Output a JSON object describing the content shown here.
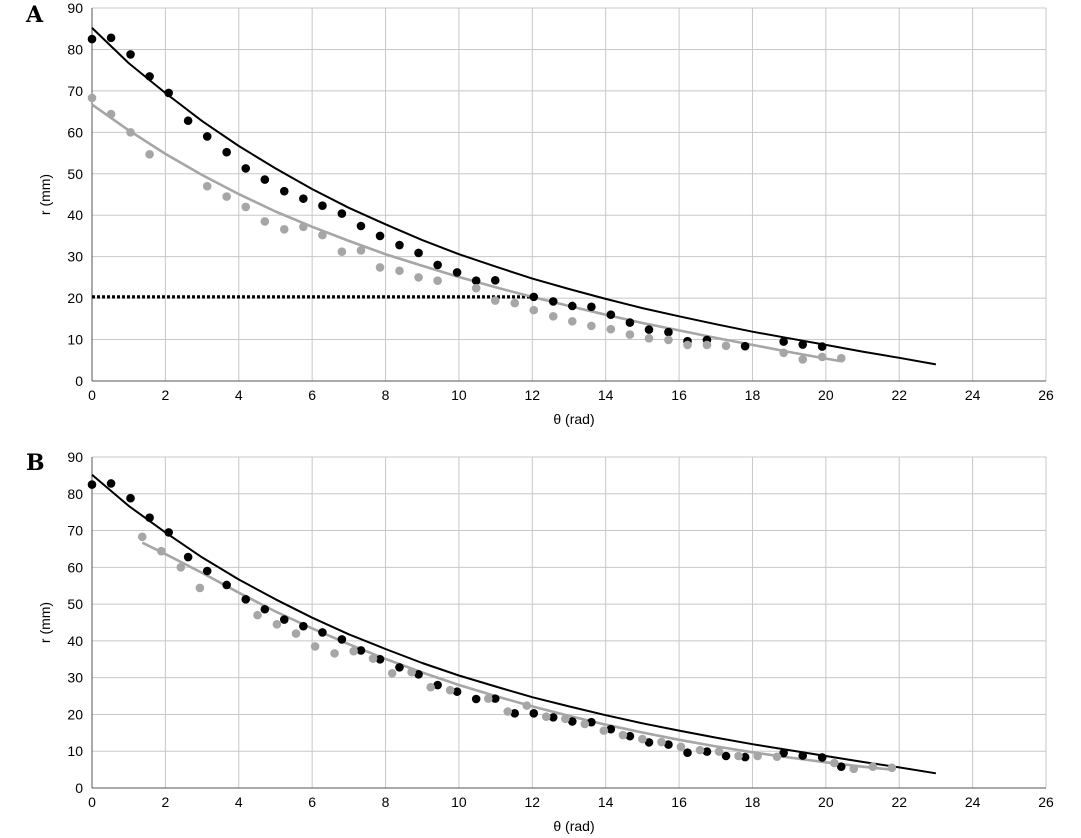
{
  "colors": {
    "black": "#000000",
    "gray": "#a6a6a6",
    "grid": "#c8c8c8"
  },
  "chart_data": [
    {
      "type": "scatter",
      "panel_label": "A",
      "xlabel": "θ (rad)",
      "ylabel": "r (mm)",
      "xlim": [
        0,
        26
      ],
      "ylim": [
        0,
        90
      ],
      "xticks": [
        "0",
        "2",
        "4",
        "6",
        "8",
        "10",
        "12",
        "14",
        "16",
        "18",
        "20",
        "22",
        "24",
        "26"
      ],
      "yticks": [
        "0",
        "10",
        "20",
        "30",
        "40",
        "50",
        "60",
        "70",
        "80",
        "90"
      ],
      "grid": true,
      "series": [
        {
          "color": "#000000",
          "kind": "points",
          "x": [
            0,
            0.52,
            1.05,
            1.57,
            2.09,
            2.62,
            3.14,
            3.67,
            4.19,
            4.71,
            5.24,
            5.76,
            6.28,
            6.81,
            7.33,
            7.85,
            8.38,
            8.9,
            9.42,
            9.95,
            10.47,
            10.99,
            12.04,
            12.57,
            13.09,
            13.61,
            14.14,
            14.66,
            15.18,
            15.71,
            16.23,
            16.76,
            17.8,
            18.85,
            19.37,
            19.9
          ],
          "y": [
            82.5,
            82.8,
            78.8,
            73.5,
            69.5,
            62.8,
            59,
            55.2,
            51.3,
            48.6,
            45.8,
            44,
            42.3,
            40.4,
            37.4,
            35,
            32.8,
            30.9,
            28,
            26.2,
            24.2,
            24.3,
            20.3,
            19.2,
            18.1,
            17.9,
            16,
            14.1,
            12.4,
            11.8,
            9.6,
            9.9,
            8.4,
            9.5,
            8.8,
            8.3
          ]
        },
        {
          "color": "#000000",
          "kind": "fit",
          "x": [
            0,
            1,
            2,
            3,
            4,
            5,
            6,
            7,
            8,
            9,
            10,
            11,
            12,
            13,
            14,
            15,
            16,
            17,
            18,
            19,
            20,
            21,
            22,
            23
          ],
          "y": [
            85.2,
            76.7,
            69.5,
            62.7,
            56.7,
            51.3,
            46.3,
            41.8,
            37.8,
            34,
            30.6,
            27.6,
            24.7,
            22.2,
            19.8,
            17.6,
            15.6,
            13.7,
            11.9,
            10.3,
            8.7,
            7.1,
            5.6,
            4
          ]
        },
        {
          "color": "#a6a6a6",
          "kind": "points",
          "x": [
            0,
            0.52,
            1.05,
            1.57,
            3.14,
            3.67,
            4.19,
            4.71,
            5.24,
            5.76,
            6.28,
            6.81,
            7.33,
            7.85,
            8.38,
            8.9,
            9.42,
            10.47,
            10.99,
            11.52,
            12.04,
            12.57,
            13.09,
            13.61,
            14.14,
            14.66,
            15.18,
            15.71,
            16.23,
            16.76,
            17.28,
            18.85,
            19.37,
            19.9,
            20.42
          ],
          "y": [
            68.3,
            64.4,
            60,
            54.7,
            47,
            44.5,
            42,
            38.5,
            36.6,
            37.2,
            35.2,
            31.2,
            31.5,
            27.4,
            26.6,
            25,
            24.2,
            22.4,
            19.4,
            18.8,
            17.1,
            15.6,
            14.4,
            13.3,
            12.5,
            11.2,
            10.3,
            9.9,
            8.7,
            8.7,
            8.5,
            6.8,
            5.2,
            5.8,
            5.5
          ]
        },
        {
          "color": "#a6a6a6",
          "kind": "fit",
          "x": [
            0,
            1,
            2,
            3,
            4,
            5,
            6,
            7,
            8,
            9,
            10,
            11,
            12,
            13,
            14,
            15,
            16,
            17,
            18,
            19,
            20,
            20.4
          ],
          "y": [
            66.7,
            60.5,
            54.8,
            49.7,
            45.1,
            40.9,
            37.2,
            33.8,
            30.6,
            27.8,
            25.1,
            22.6,
            20.3,
            18.1,
            16,
            14,
            12.2,
            10.4,
            8.7,
            7,
            5.4,
            4.8
          ]
        },
        {
          "color": "#000000",
          "kind": "dotted",
          "x": [
            0,
            12
          ],
          "y": [
            20.3,
            20.3
          ]
        }
      ]
    },
    {
      "type": "scatter",
      "panel_label": "B",
      "xlabel": "θ (rad)",
      "ylabel": "r (mm)",
      "xlim": [
        0,
        26
      ],
      "ylim": [
        0,
        90
      ],
      "xticks": [
        "0",
        "2",
        "4",
        "6",
        "8",
        "10",
        "12",
        "14",
        "16",
        "18",
        "20",
        "22",
        "24",
        "26"
      ],
      "yticks": [
        "0",
        "10",
        "20",
        "30",
        "40",
        "50",
        "60",
        "70",
        "80",
        "90"
      ],
      "grid": true,
      "series": [
        {
          "color": "#000000",
          "kind": "points",
          "x": [
            0,
            0.52,
            1.05,
            1.57,
            2.09,
            2.62,
            3.14,
            3.67,
            4.19,
            4.71,
            5.24,
            5.76,
            6.28,
            6.81,
            7.33,
            7.85,
            8.38,
            8.9,
            9.42,
            9.95,
            10.47,
            10.99,
            11.52,
            12.04,
            12.57,
            13.09,
            13.61,
            14.14,
            14.66,
            15.18,
            15.71,
            16.23,
            16.76,
            17.28,
            17.8,
            18.85,
            19.37,
            19.9,
            20.42
          ],
          "y": [
            82.5,
            82.8,
            78.8,
            73.5,
            69.5,
            62.8,
            59,
            55.2,
            51.3,
            48.6,
            45.8,
            44,
            42.3,
            40.4,
            37.4,
            35,
            32.8,
            30.9,
            28,
            26.2,
            24.2,
            24.3,
            20.3,
            20.3,
            19.2,
            18.1,
            17.9,
            16,
            14.1,
            12.4,
            11.8,
            9.6,
            9.9,
            8.7,
            8.4,
            9.5,
            8.8,
            8.3,
            5.8
          ]
        },
        {
          "color": "#000000",
          "kind": "fit",
          "x": [
            0,
            1,
            2,
            3,
            4,
            5,
            6,
            7,
            8,
            9,
            10,
            11,
            12,
            13,
            14,
            15,
            16,
            17,
            18,
            19,
            20,
            21,
            22,
            23
          ],
          "y": [
            85.2,
            76.7,
            69.5,
            62.7,
            56.7,
            51.3,
            46.3,
            41.8,
            37.8,
            34,
            30.6,
            27.6,
            24.7,
            22.2,
            19.8,
            17.6,
            15.6,
            13.7,
            11.9,
            10.3,
            8.7,
            7.1,
            5.6,
            4
          ]
        },
        {
          "color": "#a6a6a6",
          "kind": "points",
          "x": [
            1.37,
            1.89,
            2.42,
            2.94,
            4.51,
            5.04,
            5.56,
            6.08,
            6.61,
            7.13,
            7.66,
            8.18,
            8.71,
            9.23,
            9.76,
            10.8,
            11.33,
            11.85,
            12.38,
            12.9,
            13.43,
            13.95,
            14.47,
            15,
            15.52,
            16.05,
            16.57,
            17.09,
            17.62,
            18.14,
            18.67,
            20.23,
            20.76,
            21.28,
            21.8
          ],
          "y": [
            68.3,
            64.4,
            60,
            54.4,
            47,
            44.5,
            42,
            38.5,
            36.6,
            37.2,
            35.2,
            31.2,
            31.5,
            27.4,
            26.6,
            24.3,
            20.8,
            22.4,
            19.4,
            18.8,
            17.4,
            15.6,
            14.4,
            13.3,
            12.5,
            11.2,
            10.3,
            9.9,
            8.7,
            8.7,
            8.5,
            6.8,
            5.2,
            5.8,
            5.5
          ]
        },
        {
          "color": "#a6a6a6",
          "kind": "fit",
          "x": [
            1.37,
            2,
            3,
            4,
            5,
            6,
            7,
            8,
            9,
            10,
            11,
            12,
            13,
            14,
            15,
            16,
            17,
            18,
            19,
            20,
            21,
            21.8
          ],
          "y": [
            66.7,
            63.6,
            58.5,
            53.1,
            48,
            43.4,
            39.1,
            35.1,
            31.4,
            28,
            25,
            22.2,
            19.6,
            17.2,
            15.1,
            13.1,
            11.3,
            9.7,
            8.3,
            7,
            5.8,
            5
          ]
        }
      ]
    }
  ]
}
